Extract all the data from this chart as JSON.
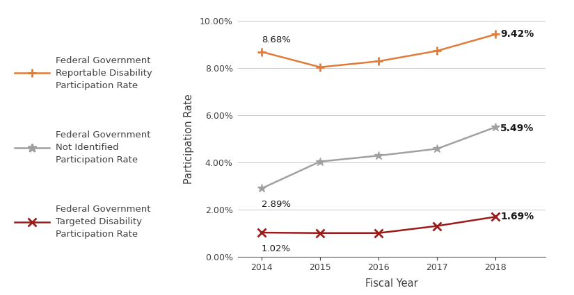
{
  "years": [
    2014,
    2015,
    2016,
    2017,
    2018
  ],
  "reportable": [
    8.68,
    8.03,
    8.28,
    8.72,
    9.42
  ],
  "not_identified": [
    2.89,
    4.03,
    4.28,
    4.57,
    5.49
  ],
  "targeted": [
    1.02,
    1.0,
    1.0,
    1.3,
    1.69
  ],
  "reportable_color": "#E07B39",
  "not_identified_color": "#A0A0A0",
  "targeted_color": "#9B1B1B",
  "xlabel": "Fiscal Year",
  "ylabel": "Participation Rate",
  "ylim": [
    0.0,
    10.0
  ],
  "yticks": [
    0.0,
    2.0,
    4.0,
    6.0,
    8.0,
    10.0
  ],
  "legend_labels": [
    "Federal Government\nReportable Disability\nParticipation Rate",
    "Federal Government\nNot Identified\nParticipation Rate",
    "Federal Government\nTargeted Disability\nParticipation Rate"
  ],
  "annotations_first": [
    "8.68%",
    "2.89%",
    "1.02%"
  ],
  "annotations_last": [
    "9.42%",
    "5.49%",
    "1.69%"
  ],
  "background_color": "#FFFFFF",
  "grid_color": "#C8C8C8",
  "text_color": "#404040"
}
